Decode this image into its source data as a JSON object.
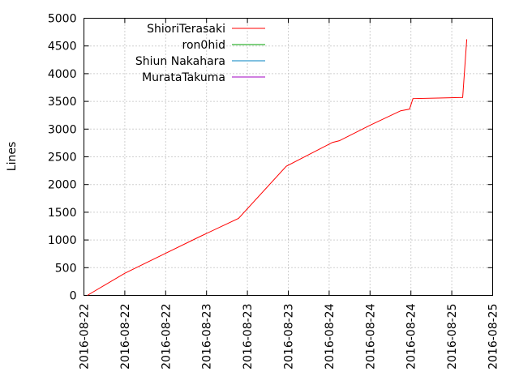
{
  "chart_data": {
    "type": "line",
    "title": "",
    "xlabel": "",
    "ylabel": "Lines",
    "ylim": [
      0,
      5000
    ],
    "yticks": [
      0,
      500,
      1000,
      1500,
      2000,
      2500,
      3000,
      3500,
      4000,
      4500,
      5000
    ],
    "xlim": [
      0,
      6
    ],
    "xtick_labels": [
      "2016-08-22",
      "2016-08-22",
      "2016-08-22",
      "2016-08-23",
      "2016-08-23",
      "2016-08-23",
      "2016-08-24",
      "2016-08-24",
      "2016-08-24",
      "2016-08-25",
      "2016-08-25"
    ],
    "grid": true,
    "legend_position": "top-left",
    "series": [
      {
        "name": "ShioriTerasaki",
        "color": "#ff0000",
        "x": [
          0.05,
          0.6,
          1.15,
          1.7,
          2.27,
          2.97,
          3.65,
          3.75,
          4.2,
          4.65,
          4.78,
          4.83,
          5.2,
          5.56,
          5.62
        ],
        "y": [
          0,
          400,
          730,
          1060,
          1390,
          2330,
          2760,
          2790,
          3070,
          3330,
          3360,
          3550,
          3560,
          3570,
          4620
        ]
      },
      {
        "name": "ron0hid",
        "color": "#00a000",
        "x": [],
        "y": []
      },
      {
        "name": "Shiun Nakahara",
        "color": "#0080c0",
        "x": [],
        "y": []
      },
      {
        "name": "MurataTakuma",
        "color": "#a000c0",
        "x": [],
        "y": []
      }
    ]
  }
}
